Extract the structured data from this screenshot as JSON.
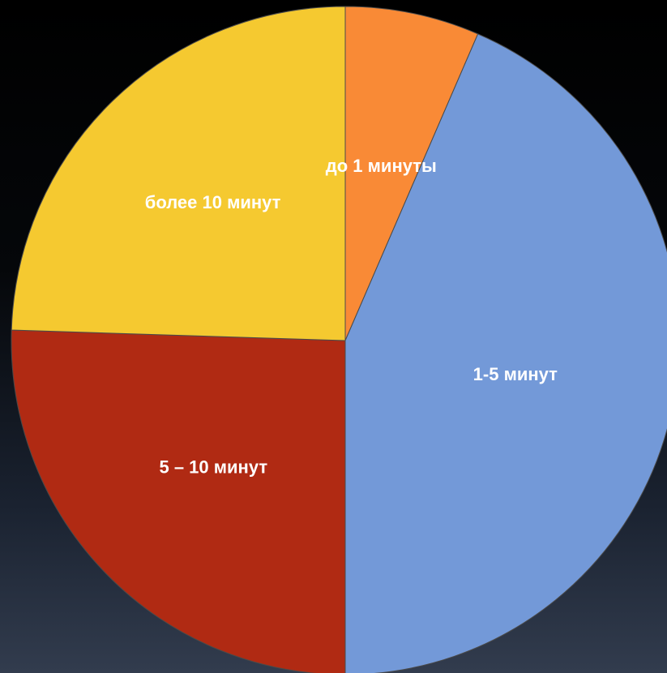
{
  "chart_data": {
    "type": "pie",
    "title": "",
    "slices": [
      {
        "label": "до 1 минуты",
        "value": 6.5,
        "color": "#f98a36"
      },
      {
        "label": "1-5 минут",
        "value": 43.5,
        "color": "#7399d8"
      },
      {
        "label": "5 – 10 минут",
        "value": 25.5,
        "color": "#b02a13"
      },
      {
        "label": "более 10 минут",
        "value": 24.5,
        "color": "#f5c930"
      }
    ],
    "start_angle_deg": 0,
    "direction": "clockwise",
    "legend": "none"
  }
}
